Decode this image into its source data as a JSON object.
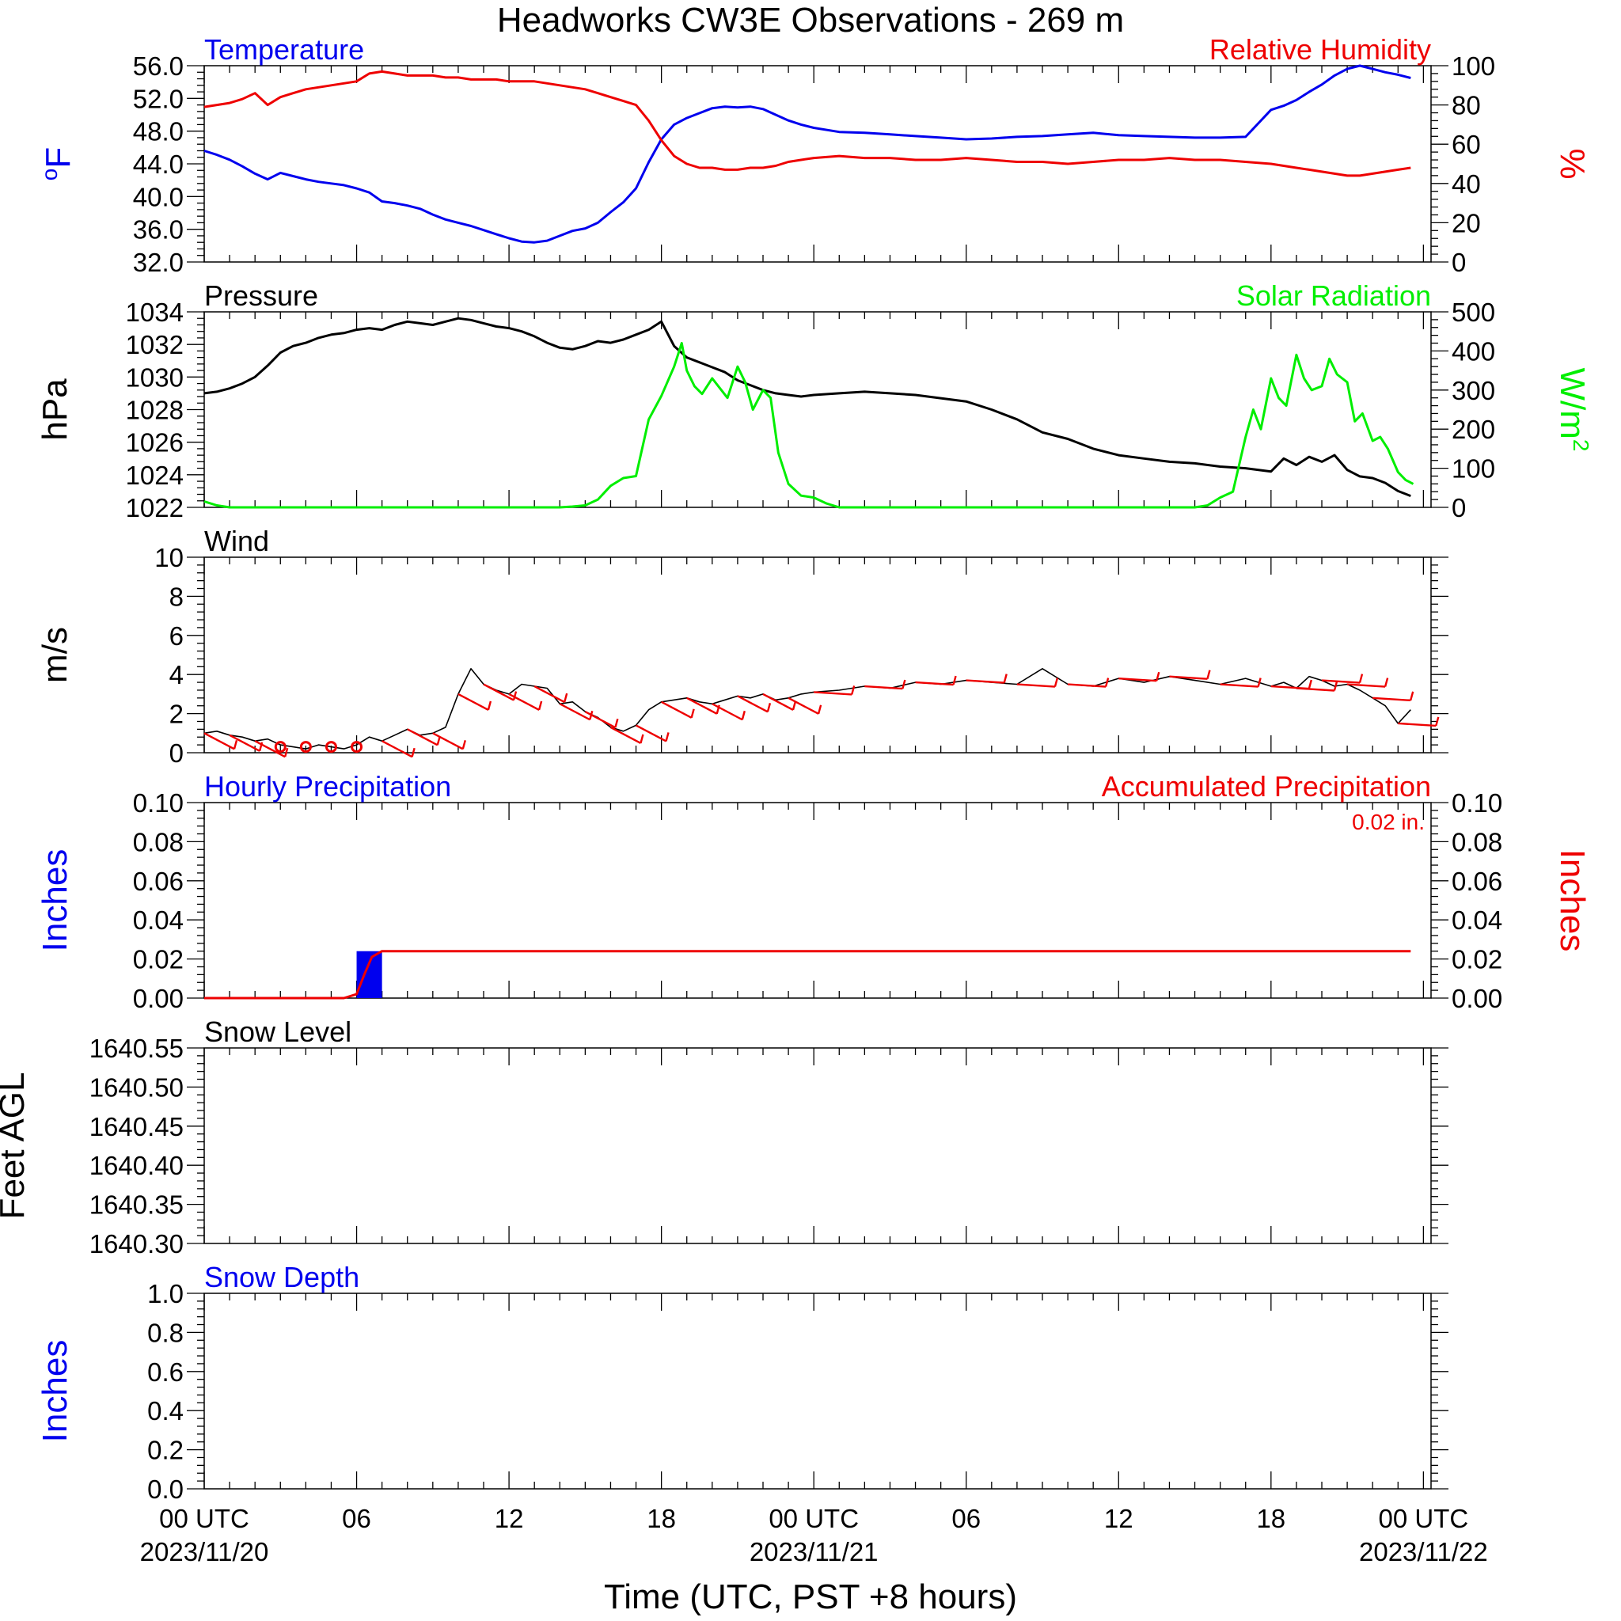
{
  "title": "Headworks CW3E Observations - 269 m",
  "time_axis": {
    "major_labels": [
      {
        "hour": 0,
        "line1": "00 UTC",
        "line2": "2023/11/20"
      },
      {
        "hour": 6,
        "line1": "06",
        "line2": ""
      },
      {
        "hour": 12,
        "line1": "12",
        "line2": ""
      },
      {
        "hour": 18,
        "line1": "18",
        "line2": ""
      },
      {
        "hour": 24,
        "line1": "00 UTC",
        "line2": "2023/11/21"
      },
      {
        "hour": 30,
        "line1": "06",
        "line2": ""
      },
      {
        "hour": 36,
        "line1": "12",
        "line2": ""
      },
      {
        "hour": 42,
        "line1": "18",
        "line2": ""
      },
      {
        "hour": 48,
        "line1": "00 UTC",
        "line2": "2023/11/22"
      }
    ],
    "xlabel": "Time (UTC, PST +8 hours)",
    "xlim": [
      0,
      48.3
    ]
  },
  "colors": {
    "blue": "#0000ee",
    "red": "#ee0000",
    "green": "#00ee00",
    "black": "#000000"
  },
  "chart_data": [
    {
      "type": "line",
      "panel": "temperature-humidity",
      "left_title": "Temperature",
      "right_title": "Relative Humidity",
      "ylabel_left": "oF",
      "ylabel_right": "%",
      "ylim_left": [
        32,
        56
      ],
      "ylim_right": [
        0,
        100
      ],
      "yticks_left": [
        "32.0",
        "36.0",
        "40.0",
        "44.0",
        "48.0",
        "52.0",
        "56.0"
      ],
      "yticks_right": [
        "0",
        "20",
        "40",
        "60",
        "80",
        "100"
      ],
      "series": [
        {
          "name": "Temperature",
          "axis": "left",
          "color": "blue",
          "x": [
            0,
            0.5,
            1,
            1.5,
            2,
            2.5,
            3,
            3.5,
            4,
            4.5,
            5,
            5.5,
            6,
            6.5,
            7,
            7.5,
            8,
            8.5,
            9,
            9.5,
            10,
            10.5,
            11,
            11.5,
            12,
            12.5,
            13,
            13.5,
            14,
            14.5,
            15,
            15.5,
            16,
            16.5,
            17,
            17.5,
            18,
            18.5,
            19,
            19.5,
            20,
            20.5,
            21,
            21.5,
            22,
            22.5,
            23,
            23.5,
            24,
            25,
            26,
            27,
            28,
            29,
            30,
            31,
            32,
            33,
            34,
            35,
            36,
            37,
            38,
            39,
            40,
            41,
            42,
            42.5,
            43,
            43.5,
            44,
            44.5,
            45,
            45.5,
            46,
            46.5,
            47,
            47.5
          ],
          "y": [
            45.6,
            45.1,
            44.5,
            43.7,
            42.8,
            42.1,
            42.9,
            42.5,
            42.1,
            41.8,
            41.6,
            41.4,
            41.0,
            40.5,
            39.4,
            39.2,
            38.9,
            38.5,
            37.8,
            37.2,
            36.8,
            36.4,
            35.9,
            35.4,
            34.9,
            34.5,
            34.4,
            34.6,
            35.2,
            35.8,
            36.1,
            36.8,
            38.1,
            39.3,
            41.0,
            44.2,
            47.0,
            48.8,
            49.6,
            50.2,
            50.8,
            51.0,
            50.9,
            51.0,
            50.7,
            50.0,
            49.3,
            48.8,
            48.4,
            47.9,
            47.8,
            47.6,
            47.4,
            47.2,
            47.0,
            47.1,
            47.3,
            47.4,
            47.6,
            47.8,
            47.5,
            47.4,
            47.3,
            47.2,
            47.2,
            47.3,
            50.6,
            51.1,
            51.8,
            52.8,
            53.7,
            54.8,
            55.6,
            56.0,
            55.6,
            55.2,
            54.9,
            54.5
          ]
        },
        {
          "name": "Relative Humidity",
          "axis": "right",
          "color": "red",
          "x": [
            0,
            0.5,
            1,
            1.5,
            2,
            2.5,
            3,
            3.5,
            4,
            4.5,
            5,
            5.5,
            6,
            6.5,
            7,
            7.5,
            8,
            8.5,
            9,
            9.5,
            10,
            10.5,
            11,
            11.5,
            12,
            12.5,
            13,
            13.5,
            14,
            14.5,
            15,
            15.5,
            16,
            16.5,
            17,
            17.5,
            18,
            18.5,
            19,
            19.5,
            20,
            20.5,
            21,
            21.5,
            22,
            22.5,
            23,
            23.5,
            24,
            25,
            26,
            27,
            28,
            29,
            30,
            31,
            32,
            33,
            34,
            35,
            36,
            37,
            38,
            39,
            40,
            41,
            42,
            42.5,
            43,
            43.5,
            44,
            44.5,
            45,
            45.5,
            46,
            46.5,
            47,
            47.5
          ],
          "y": [
            79,
            80,
            81,
            83,
            86,
            80,
            84,
            86,
            88,
            89,
            90,
            91,
            92,
            96,
            97,
            96,
            95,
            95,
            95,
            94,
            94,
            93,
            93,
            93,
            92,
            92,
            92,
            91,
            90,
            89,
            88,
            86,
            84,
            82,
            80,
            72,
            62,
            54,
            50,
            48,
            48,
            47,
            47,
            48,
            48,
            49,
            51,
            52,
            53,
            54,
            53,
            53,
            52,
            52,
            53,
            52,
            51,
            51,
            50,
            51,
            52,
            52,
            53,
            52,
            52,
            51,
            50,
            49,
            48,
            47,
            46,
            45,
            44,
            44,
            45,
            46,
            47,
            48
          ]
        }
      ]
    },
    {
      "type": "line",
      "panel": "pressure-solar",
      "left_title": "Pressure",
      "right_title": "Solar Radiation",
      "ylabel_left": "hPa",
      "ylabel_right": "W/m2",
      "ylim_left": [
        1022,
        1034
      ],
      "ylim_right": [
        0,
        500
      ],
      "yticks_left": [
        "1022",
        "1024",
        "1026",
        "1028",
        "1030",
        "1032",
        "1034"
      ],
      "yticks_right": [
        "0",
        "100",
        "200",
        "300",
        "400",
        "500"
      ],
      "series": [
        {
          "name": "Pressure",
          "axis": "left",
          "color": "black",
          "x": [
            0,
            0.5,
            1,
            1.5,
            2,
            2.5,
            3,
            3.5,
            4,
            4.5,
            5,
            5.5,
            6,
            6.5,
            7,
            7.5,
            8,
            8.5,
            9,
            9.5,
            10,
            10.5,
            11,
            11.5,
            12,
            12.5,
            13,
            13.5,
            14,
            14.5,
            15,
            15.5,
            16,
            16.5,
            17,
            17.5,
            18,
            18.5,
            19,
            19.5,
            20,
            20.5,
            21,
            21.5,
            22,
            22.5,
            23,
            23.5,
            24,
            25,
            26,
            27,
            28,
            29,
            30,
            31,
            32,
            33,
            34,
            35,
            36,
            37,
            38,
            39,
            40,
            41,
            42,
            42.5,
            43,
            43.5,
            44,
            44.5,
            45,
            45.5,
            46,
            46.5,
            47,
            47.5
          ],
          "y": [
            1029.0,
            1029.1,
            1029.3,
            1029.6,
            1030.0,
            1030.7,
            1031.5,
            1031.9,
            1032.1,
            1032.4,
            1032.6,
            1032.7,
            1032.9,
            1033.0,
            1032.9,
            1033.2,
            1033.4,
            1033.3,
            1033.2,
            1033.4,
            1033.6,
            1033.5,
            1033.3,
            1033.1,
            1033.0,
            1032.8,
            1032.5,
            1032.1,
            1031.8,
            1031.7,
            1031.9,
            1032.2,
            1032.1,
            1032.3,
            1032.6,
            1032.9,
            1033.4,
            1031.9,
            1031.2,
            1030.9,
            1030.6,
            1030.3,
            1029.8,
            1029.5,
            1029.2,
            1029.0,
            1028.9,
            1028.8,
            1028.9,
            1029.0,
            1029.1,
            1029.0,
            1028.9,
            1028.7,
            1028.5,
            1028.0,
            1027.4,
            1026.6,
            1026.2,
            1025.6,
            1025.2,
            1025.0,
            1024.8,
            1024.7,
            1024.5,
            1024.4,
            1024.2,
            1025.0,
            1024.6,
            1025.1,
            1024.8,
            1025.2,
            1024.3,
            1023.9,
            1023.8,
            1023.5,
            1023.0,
            1022.7
          ]
        },
        {
          "name": "Solar Radiation",
          "axis": "right",
          "color": "green",
          "x": [
            0,
            0.5,
            1,
            2,
            4,
            6,
            8,
            10,
            12,
            14,
            14.5,
            15,
            15.5,
            16,
            16.5,
            17,
            17.5,
            18,
            18.5,
            18.8,
            19,
            19.3,
            19.6,
            20,
            20.3,
            20.6,
            21,
            21.3,
            21.6,
            22,
            22.3,
            22.6,
            23,
            23.5,
            24,
            24.5,
            25,
            26,
            28,
            30,
            32,
            34,
            36,
            38,
            39,
            39.5,
            40,
            40.5,
            41,
            41.3,
            41.6,
            42,
            42.3,
            42.6,
            43,
            43.3,
            43.6,
            44,
            44.3,
            44.6,
            45,
            45.3,
            45.6,
            46,
            46.3,
            46.6,
            47,
            47.3,
            47.6
          ],
          "y": [
            15,
            5,
            0,
            0,
            0,
            0,
            0,
            0,
            0,
            0,
            2,
            5,
            20,
            55,
            75,
            80,
            225,
            285,
            360,
            420,
            350,
            310,
            290,
            330,
            305,
            280,
            360,
            320,
            250,
            300,
            280,
            140,
            60,
            30,
            25,
            10,
            0,
            0,
            0,
            0,
            0,
            0,
            0,
            0,
            0,
            5,
            25,
            40,
            180,
            250,
            200,
            330,
            280,
            260,
            390,
            330,
            300,
            310,
            380,
            340,
            320,
            220,
            240,
            170,
            180,
            150,
            90,
            70,
            60
          ]
        }
      ]
    },
    {
      "type": "line",
      "panel": "wind",
      "left_title": "Wind",
      "ylabel_left": "m/s",
      "ylim_left": [
        0,
        10
      ],
      "yticks_left": [
        "0",
        "2",
        "4",
        "6",
        "8",
        "10"
      ],
      "series": [
        {
          "name": "Wind",
          "axis": "left",
          "color": "black",
          "x": [
            0,
            0.5,
            1,
            1.5,
            2,
            2.5,
            3,
            3.5,
            4,
            4.5,
            5,
            5.5,
            6,
            6.5,
            7,
            7.5,
            8,
            8.5,
            9,
            9.5,
            10,
            10.5,
            11,
            11.5,
            12,
            12.5,
            13,
            13.5,
            14,
            14.5,
            15,
            15.5,
            16,
            16.5,
            17,
            17.5,
            18,
            18.5,
            19,
            19.5,
            20,
            20.5,
            21,
            21.5,
            22,
            22.5,
            23,
            23.5,
            24,
            25,
            26,
            27,
            28,
            29,
            30,
            31,
            32,
            33,
            34,
            35,
            36,
            37,
            38,
            39,
            40,
            41,
            42,
            42.5,
            43,
            43.5,
            44,
            44.5,
            45,
            45.5,
            46,
            46.5,
            47,
            47.5
          ],
          "y": [
            1.0,
            1.1,
            0.9,
            0.8,
            0.6,
            0.7,
            0.4,
            0.3,
            0.2,
            0.4,
            0.3,
            0.2,
            0.4,
            0.8,
            0.6,
            0.9,
            1.2,
            0.9,
            1.0,
            1.3,
            3.0,
            4.3,
            3.5,
            3.2,
            3.0,
            3.5,
            3.4,
            3.3,
            2.5,
            2.6,
            2.1,
            1.8,
            1.3,
            1.1,
            1.4,
            2.2,
            2.6,
            2.7,
            2.8,
            2.6,
            2.5,
            2.7,
            2.9,
            2.8,
            3.0,
            2.7,
            2.8,
            3.0,
            3.1,
            3.2,
            3.4,
            3.3,
            3.6,
            3.5,
            3.7,
            3.6,
            3.5,
            4.3,
            3.5,
            3.4,
            3.8,
            3.6,
            3.9,
            3.7,
            3.5,
            3.8,
            3.4,
            3.6,
            3.3,
            3.9,
            3.7,
            3.4,
            3.5,
            3.2,
            2.8,
            2.4,
            1.5,
            2.2
          ]
        }
      ]
    },
    {
      "type": "bar",
      "panel": "precipitation",
      "left_title": "Hourly Precipitation",
      "right_title": "Accumulated Precipitation",
      "total_label": "0.02 in.",
      "ylabel_left": "Inches",
      "ylabel_right": "Inches",
      "ylim_left": [
        0,
        0.1
      ],
      "ylim_right": [
        0,
        0.1
      ],
      "yticks_left": [
        "0.00",
        "0.02",
        "0.04",
        "0.06",
        "0.08",
        "0.10"
      ],
      "yticks_right": [
        "0.00",
        "0.02",
        "0.04",
        "0.06",
        "0.08",
        "0.10"
      ],
      "series": [
        {
          "name": "Hourly Precipitation",
          "color": "blue",
          "x": [
            6.5
          ],
          "values": [
            0.024
          ]
        },
        {
          "name": "Accumulated Precipitation",
          "color": "red",
          "x": [
            0,
            5.5,
            6.0,
            6.3,
            6.6,
            7.0,
            47.5
          ],
          "y": [
            0,
            0,
            0.002,
            0.012,
            0.021,
            0.024,
            0.024
          ]
        }
      ]
    },
    {
      "type": "line",
      "panel": "snow-level",
      "left_title": "Snow Level",
      "ylabel_left": "Feet AGL",
      "ylim_left": [
        1640.25,
        1640.58
      ],
      "yticks_left": [
        "1640.30",
        "1640.35",
        "1640.40",
        "1640.45",
        "1640.50",
        "1640.55"
      ],
      "series": []
    },
    {
      "type": "line",
      "panel": "snow-depth",
      "left_title": "Snow Depth",
      "ylabel_left": "Inches",
      "ylim_left": [
        0,
        1
      ],
      "yticks_left": [
        "0.0",
        "0.2",
        "0.4",
        "0.6",
        "0.8",
        "1.0"
      ],
      "series": []
    }
  ]
}
